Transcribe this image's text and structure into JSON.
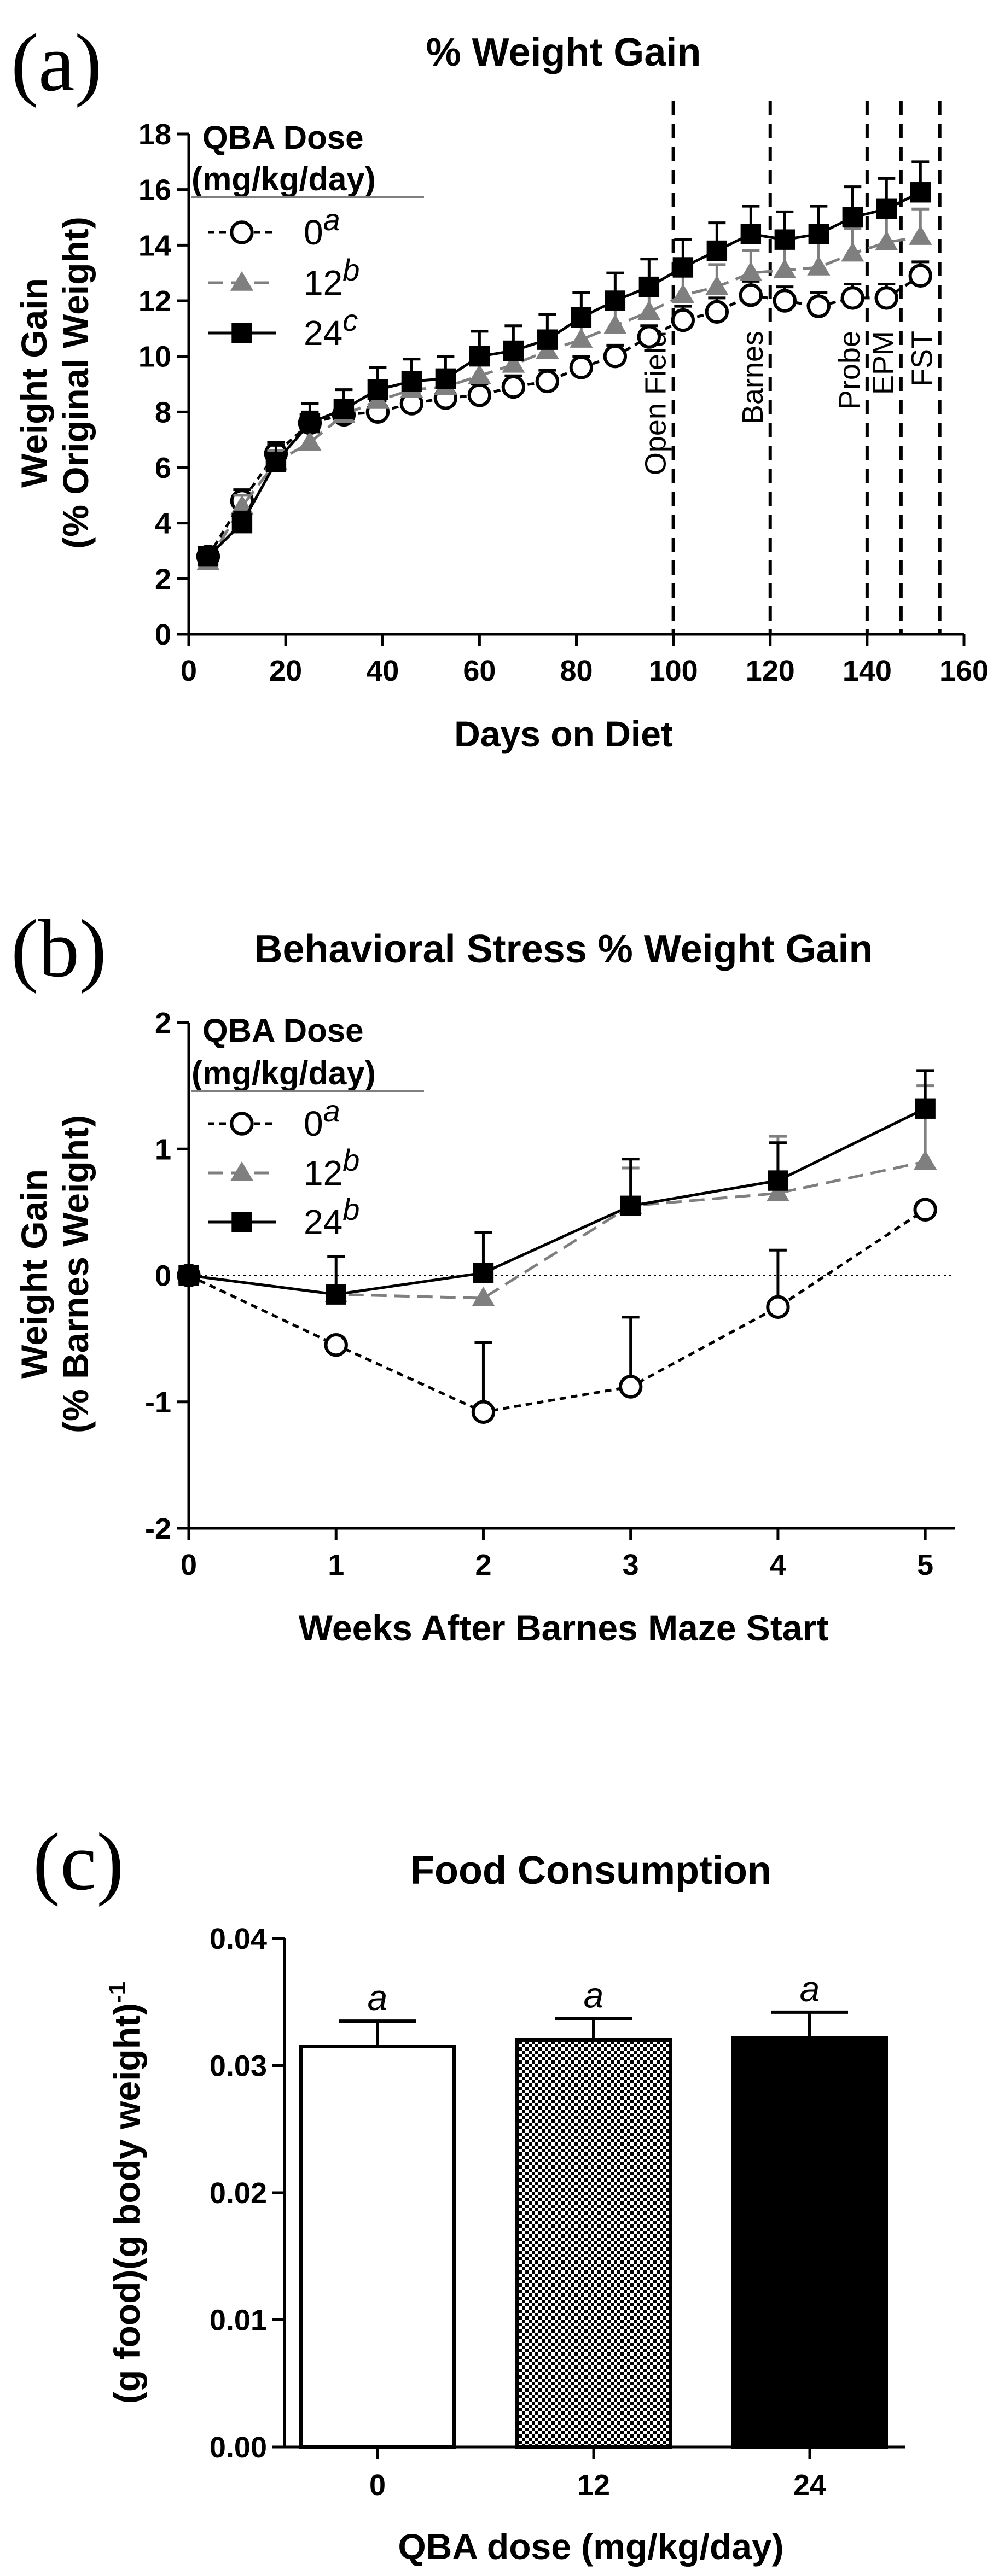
{
  "chart_data": [
    {
      "panel": "(a)",
      "type": "line",
      "title": "% Weight Gain",
      "xlabel": "Days on Diet",
      "ylabel_lines": [
        "Weight Gain",
        "(% Original Weight)"
      ],
      "xlim": [
        0,
        160
      ],
      "ylim": [
        0,
        18
      ],
      "xticks": [
        0,
        20,
        40,
        60,
        80,
        100,
        120,
        140,
        160
      ],
      "yticks": [
        0,
        2,
        4,
        6,
        8,
        10,
        12,
        14,
        16,
        18
      ],
      "legend": {
        "title_lines": [
          "QBA Dose",
          "(mg/kg/day)"
        ],
        "placement": "top-left",
        "entries": [
          {
            "label": "0",
            "letter": "a"
          },
          {
            "label": "12",
            "letter": "b"
          },
          {
            "label": "24",
            "letter": "c"
          }
        ]
      },
      "vlines": [
        {
          "x": 100,
          "label": "Open Field"
        },
        {
          "x": 120,
          "label": "Barnes"
        },
        {
          "x": 140,
          "label": "Probe"
        },
        {
          "x": 147,
          "label": "EPM"
        },
        {
          "x": 155,
          "label": "FST"
        }
      ],
      "x": [
        4,
        11,
        18,
        25,
        32,
        39,
        46,
        53,
        60,
        67,
        74,
        81,
        88,
        95,
        102,
        109,
        116,
        123,
        130,
        137,
        144,
        151
      ],
      "series": [
        {
          "label": "0",
          "color": "#000000",
          "marker": "open-circle",
          "line": "dotted",
          "values": [
            2.8,
            4.8,
            6.5,
            7.6,
            7.9,
            8.0,
            8.3,
            8.5,
            8.6,
            8.9,
            9.1,
            9.6,
            10.0,
            10.7,
            11.3,
            11.6,
            12.2,
            12.0,
            11.8,
            12.1,
            12.1,
            12.9
          ],
          "errors": [
            0.3,
            0.4,
            0.4,
            0.4,
            0.4,
            0.4,
            0.4,
            0.4,
            0.4,
            0.4,
            0.4,
            0.4,
            0.4,
            0.4,
            0.5,
            0.5,
            0.5,
            0.5,
            0.5,
            0.5,
            0.5,
            0.5
          ]
        },
        {
          "label": "12",
          "color": "#7f7f7f",
          "marker": "triangle",
          "line": "dashed",
          "values": [
            2.6,
            4.6,
            6.2,
            6.9,
            7.9,
            8.4,
            8.8,
            8.9,
            9.3,
            9.7,
            10.2,
            10.6,
            11.1,
            11.6,
            12.2,
            12.5,
            13.0,
            13.1,
            13.2,
            13.7,
            14.1,
            14.3
          ],
          "errors": [
            0.4,
            0.4,
            0.4,
            0.4,
            0.5,
            0.5,
            0.5,
            0.6,
            0.6,
            0.6,
            0.6,
            0.7,
            0.7,
            0.7,
            0.8,
            0.8,
            0.8,
            0.9,
            0.9,
            0.9,
            1.0,
            1.0
          ]
        },
        {
          "label": "24",
          "color": "#000000",
          "marker": "square",
          "line": "solid",
          "values": [
            2.8,
            4.0,
            6.2,
            7.6,
            8.1,
            8.8,
            9.1,
            9.2,
            10.0,
            10.2,
            10.6,
            11.4,
            12.0,
            12.5,
            13.2,
            13.8,
            14.4,
            14.2,
            14.4,
            15.0,
            15.3,
            15.9
          ],
          "errors": [
            0.3,
            0.4,
            0.6,
            0.7,
            0.7,
            0.8,
            0.8,
            0.8,
            0.9,
            0.9,
            0.9,
            0.9,
            1.0,
            1.0,
            1.0,
            1.0,
            1.0,
            1.0,
            1.0,
            1.1,
            1.1,
            1.1
          ]
        }
      ]
    },
    {
      "panel": "(b)",
      "type": "line",
      "title": "Behavioral Stress % Weight Gain",
      "xlabel": "Weeks After Barnes Maze Start",
      "ylabel_lines": [
        "Weight Gain",
        "(% Barnes Weight)"
      ],
      "xlim": [
        0,
        5.2
      ],
      "ylim": [
        -2,
        2
      ],
      "xticks": [
        0,
        1,
        2,
        3,
        4,
        5
      ],
      "yticks": [
        -2,
        -1,
        0,
        1,
        2
      ],
      "zero_line": true,
      "legend": {
        "title_lines": [
          "QBA Dose",
          "(mg/kg/day)"
        ],
        "placement": "top-left",
        "entries": [
          {
            "label": "0",
            "letter": "a"
          },
          {
            "label": "12",
            "letter": "b"
          },
          {
            "label": "24",
            "letter": "b"
          }
        ]
      },
      "x": [
        0,
        1,
        2,
        3,
        4,
        5
      ],
      "series": [
        {
          "label": "0",
          "color": "#000000",
          "marker": "open-circle",
          "line": "dotted",
          "values": [
            0,
            -0.55,
            -1.08,
            -0.88,
            -0.25,
            0.52
          ],
          "errors": [
            0,
            0.0,
            0.55,
            0.55,
            0.45,
            0.0
          ]
        },
        {
          "label": "12",
          "color": "#7f7f7f",
          "marker": "triangle",
          "line": "dashed",
          "values": [
            0,
            -0.15,
            -0.18,
            0.55,
            0.65,
            0.9
          ],
          "errors": [
            0,
            0.0,
            0.0,
            0.3,
            0.45,
            0.6
          ]
        },
        {
          "label": "24",
          "color": "#000000",
          "marker": "square",
          "line": "solid",
          "values": [
            0,
            -0.15,
            0.02,
            0.55,
            0.75,
            1.32
          ],
          "errors": [
            0,
            0.3,
            0.32,
            0.37,
            0.3,
            0.3
          ]
        }
      ]
    },
    {
      "panel": "(c)",
      "type": "bar",
      "title": "Food Consumption",
      "xlabel": "QBA dose (mg/kg/day)",
      "ylabel": "(g food)(g body weight)",
      "ylabel_sup": "-1",
      "ylim": [
        0,
        0.04
      ],
      "yticks": [
        "0.00",
        "0.01",
        "0.02",
        "0.03",
        "0.04"
      ],
      "categories": [
        "0",
        "12",
        "24"
      ],
      "values": [
        0.0315,
        0.032,
        0.0322
      ],
      "errors": [
        0.002,
        0.0017,
        0.002
      ],
      "letters": [
        "a",
        "a",
        "a"
      ],
      "fills": [
        "white",
        "checker",
        "black"
      ]
    }
  ]
}
